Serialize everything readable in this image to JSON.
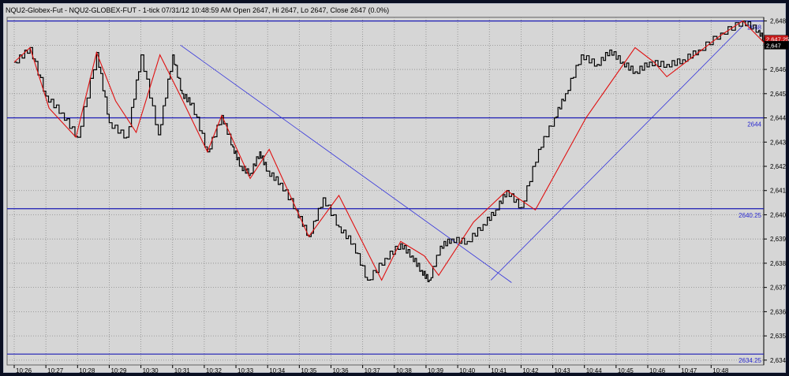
{
  "chart_data": {
    "type": "line",
    "title": "NQU2-Globex-Fut - NQU2-GLOBEX-FUT - 1-tick 07/31/12 10:48:59 AM Open 2647, Hi 2647, Lo 2647, Close 2647 (0.0%)",
    "x_ticks": [
      "10:26",
      "10:27",
      "10:28",
      "10:29",
      "10:30",
      "10:31",
      "10:32",
      "10:33",
      "10:34",
      "10:35",
      "10:36",
      "10:37",
      "10:38",
      "10:39",
      "10:40",
      "10:41",
      "10:42",
      "10:43",
      "10:44",
      "10:45",
      "10:46",
      "10:47",
      "10:48"
    ],
    "y_ticks": [
      "2,648",
      "2,647",
      "2,646",
      "2,645",
      "2,644",
      "2,643",
      "2,642",
      "2,641",
      "2,640",
      "2,639",
      "2,638",
      "2,637",
      "2,636",
      "2,635",
      "2,634"
    ],
    "ylim": [
      2633.8,
      2648.15
    ],
    "xlim": [
      0,
      23.9
    ],
    "series": [
      {
        "x": [
          0,
          0.5,
          1.0,
          1.5,
          2.0,
          2.6,
          3.0,
          3.55,
          4.0,
          4.55,
          5.0,
          5.3,
          5.6,
          6.1,
          6.55,
          6.9,
          7.15,
          7.45,
          7.75,
          8.0,
          8.4,
          8.9,
          9.3,
          9.75,
          10.25,
          10.7,
          11.15,
          11.7,
          12.2,
          12.55,
          12.85,
          13.1,
          13.45,
          13.8,
          14.3,
          14.8,
          15.2,
          15.55,
          16.0,
          16.55,
          17.05,
          17.4,
          17.9,
          18.4,
          18.8,
          19.2,
          19.6,
          20.05,
          20.6,
          21.1,
          21.6,
          22.3,
          23.0,
          23.5,
          23.75
        ],
        "values": [
          2646.3,
          2646.9,
          2644.9,
          2644.2,
          2643.2,
          2646.7,
          2643.8,
          2643.2,
          2646.6,
          2643.3,
          2646.6,
          2645.0,
          2644.6,
          2642.6,
          2644.1,
          2642.8,
          2642.0,
          2641.7,
          2642.6,
          2641.8,
          2641.3,
          2640.2,
          2639.1,
          2640.7,
          2639.5,
          2638.8,
          2637.3,
          2638.2,
          2638.8,
          2638.3,
          2637.7,
          2637.3,
          2638.7,
          2639.0,
          2638.9,
          2639.6,
          2640.2,
          2641.0,
          2640.3,
          2642.7,
          2644.0,
          2645.0,
          2646.6,
          2646.2,
          2646.8,
          2646.3,
          2645.9,
          2646.3,
          2646.2,
          2646.4,
          2646.8,
          2647.5,
          2648.0,
          2647.6,
          2647.0
        ]
      },
      {
        "x": [
          0,
          0.5,
          1.1,
          1.95,
          2.6,
          3.2,
          3.85,
          4.6,
          5.25,
          6.1,
          6.55,
          7.45,
          8.05,
          9.3,
          10.25,
          11.6,
          12.2,
          12.95,
          13.4,
          14.5,
          15.55,
          16.45,
          18.05,
          19.6,
          20.2,
          20.6,
          21.1,
          22.3,
          23.0,
          23.75
        ],
        "values": [
          2646.3,
          2646.9,
          2644.4,
          2643.2,
          2646.7,
          2644.7,
          2643.4,
          2646.6,
          2644.9,
          2642.6,
          2644.1,
          2641.5,
          2642.7,
          2639.1,
          2640.8,
          2637.3,
          2638.9,
          2638.3,
          2637.5,
          2639.7,
          2641.0,
          2640.2,
          2644.0,
          2646.9,
          2646.3,
          2645.7,
          2646.2,
          2647.4,
          2648.0,
          2647.0
        ]
      }
    ],
    "horizontal_levels": [
      {
        "value": 2648.0,
        "label": "2648"
      },
      {
        "value": 2644.0,
        "label": "2644"
      },
      {
        "value": 2640.25,
        "label": "2640.25"
      },
      {
        "value": 2634.25,
        "label": "2634.25"
      }
    ],
    "trend_lines": [
      {
        "x1": 5.25,
        "y1": 2647.0,
        "x2": 15.7,
        "y2": 2637.2
      },
      {
        "x1": 15.05,
        "y1": 2637.3,
        "x2": 23.0,
        "y2": 2647.8
      }
    ],
    "price_tags": [
      {
        "value": 2647.25,
        "label": "2,647.25",
        "color": "#c41a1a"
      },
      {
        "value": 2647.0,
        "label": "2,647",
        "color": "#000000"
      }
    ],
    "colors": {
      "background": "#d6d6d6",
      "window": "#0a0f22",
      "grid": "#8a8a8a",
      "price": "#000000",
      "zigzag": "#e01010",
      "levels": "#1a1ab4",
      "trend": "#3232dc"
    },
    "grid": true
  }
}
